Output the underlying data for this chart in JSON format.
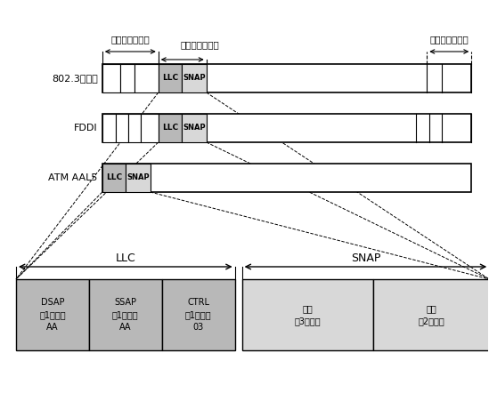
{
  "bg_color": "#ffffff",
  "light_gray": "#b8b8b8",
  "lighter_gray": "#d8d8d8",
  "white": "#ffffff",
  "row1_label": "802.3以太网",
  "row2_label": "FDDI",
  "row3_label": "ATM AAL5",
  "header1": "介质访问控制层",
  "header2": "逻辑链路控制层",
  "header3": "介质访问控制层",
  "llc_label": "LLC",
  "snap_label": "SNAP",
  "cell_texts": [
    "DSAP\n（1字节）\nAA",
    "SSAP\n（1字节）\nAA",
    "CTRL\n（1字节）\n03",
    "厂商\n（3字节）",
    "类型\n（2字节）"
  ],
  "llc_section": "LLC",
  "snap_section": "SNAP"
}
